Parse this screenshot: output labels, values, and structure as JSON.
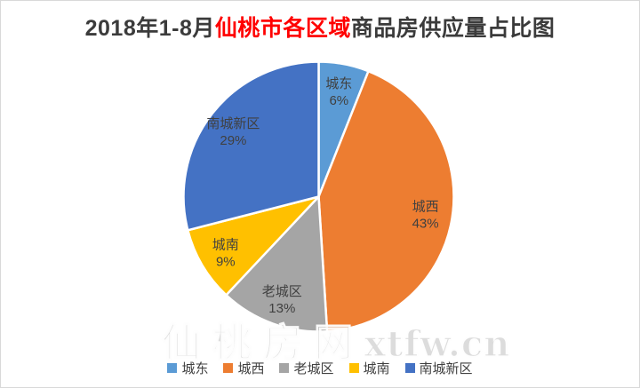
{
  "title": {
    "segments": [
      {
        "text": "2018年1-8月",
        "color": "#3b3b3b"
      },
      {
        "text": "仙桃市各区域",
        "color": "#ff0000"
      },
      {
        "text": "商品房供应量占比图",
        "color": "#3b3b3b"
      }
    ]
  },
  "watermark": {
    "text": "仙桃房网xtfw.cn"
  },
  "chart_data": {
    "type": "pie",
    "title": "2018年1-8月仙桃市各区域商品房供应量占比图",
    "categories": [
      "城东",
      "城西",
      "老城区",
      "城南",
      "南城新区"
    ],
    "values": [
      6,
      43,
      13,
      9,
      29
    ],
    "unit": "%",
    "colors": [
      "#5B9BD5",
      "#ED7D31",
      "#A5A5A5",
      "#FFC000",
      "#4472C4"
    ],
    "start_angle_deg": 0,
    "direction": "clockwise",
    "slice_border_color": "#ffffff",
    "label_format": "name + percent",
    "label_color": "#404040",
    "legend_position": "bottom"
  }
}
